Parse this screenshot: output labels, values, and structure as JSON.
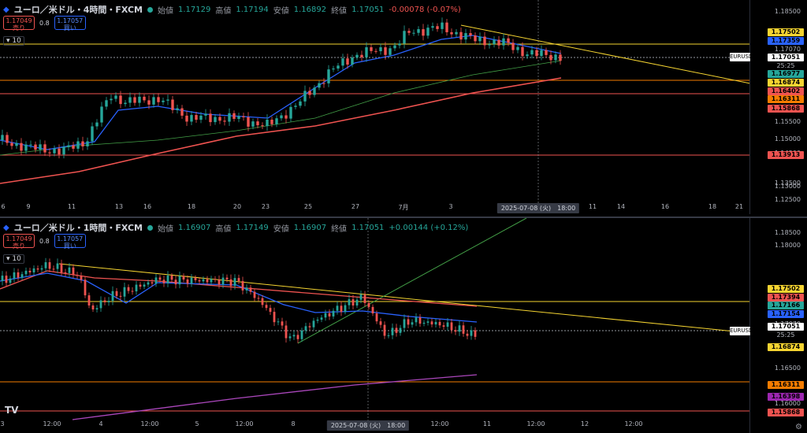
{
  "top": {
    "title": "ユーロ／米ドル・4時間・FXCM",
    "ohlc": [
      {
        "label": "始値",
        "value": "1.17129"
      },
      {
        "label": "高値",
        "value": "1.17194"
      },
      {
        "label": "安値",
        "value": "1.16892"
      },
      {
        "label": "終値",
        "value": "1.17051"
      }
    ],
    "change": "-0.00078 (-0.07%)",
    "sell_price": "1.17049",
    "sell_label": "売り",
    "spread": "0.8",
    "buy_price": "1.17057",
    "buy_label": "買い",
    "lots": "10",
    "price_ticks": [
      "1.18500",
      "1.17070",
      "1.15500",
      "1.15000",
      "1.14500",
      "1.13500",
      "1.13000",
      "1.12500"
    ],
    "tags": [
      {
        "text": "1.17502",
        "color": "#f5d431"
      },
      {
        "text": "1.17359",
        "color": "#2962ff"
      },
      {
        "text": "1.17051",
        "color": "#ffffff"
      },
      {
        "text": "25:25",
        "color": "transparent"
      },
      {
        "text": "1.16977",
        "color": "#26a69a"
      },
      {
        "text": "1.16874",
        "color": "#f5d431"
      },
      {
        "text": "1.16402",
        "color": "#ef5350"
      },
      {
        "text": "1.16311",
        "color": "#f57c00"
      },
      {
        "text": "1.15868",
        "color": "#ef5350"
      },
      {
        "text": "1.13913",
        "color": "#ef5350"
      }
    ],
    "symbol": "EURUSD",
    "x_ticks": [
      "6",
      "9",
      "11",
      "13",
      "16",
      "18",
      "20",
      "23",
      "25",
      "27",
      "7月",
      "3",
      "5",
      "11",
      "14",
      "16",
      "18",
      "21"
    ],
    "crosshair_time": "2025-07-08 (火)　18:00"
  },
  "bottom": {
    "title": "ユーロ／米ドル・1時間・FXCM",
    "ohlc": [
      {
        "label": "始値",
        "value": "1.16907"
      },
      {
        "label": "高値",
        "value": "1.17149"
      },
      {
        "label": "安値",
        "value": "1.16907"
      },
      {
        "label": "終値",
        "value": "1.17051"
      }
    ],
    "change": "+0.00144 (+0.12%)",
    "sell_price": "1.17049",
    "sell_label": "売り",
    "spread": "0.8",
    "buy_price": "1.17057",
    "buy_label": "買い",
    "lots": "10",
    "price_ticks": [
      "1.18500",
      "1.18000",
      "1.17070",
      "1.16500",
      "1.16000"
    ],
    "tags": [
      {
        "text": "1.17502",
        "color": "#f5d431"
      },
      {
        "text": "1.17394",
        "color": "#ef5350"
      },
      {
        "text": "1.17166",
        "color": "#26a69a"
      },
      {
        "text": "1.17154",
        "color": "#2962ff"
      },
      {
        "text": "1.17051",
        "color": "#ffffff"
      },
      {
        "text": "25:25",
        "color": "transparent"
      },
      {
        "text": "1.16874",
        "color": "#f5d431"
      },
      {
        "text": "1.16398",
        "color": "#9c27b0"
      },
      {
        "text": "1.16311",
        "color": "#f57c00"
      },
      {
        "text": "1.15868",
        "color": "#ef5350"
      }
    ],
    "symbol": "EURUSD",
    "x_ticks": [
      "3",
      "12:00",
      "4",
      "12:00",
      "5",
      "12:00",
      "8",
      "10",
      "12:00",
      "11",
      "12:00",
      "12",
      "12:00"
    ],
    "crosshair_time": "2025-07-08 (火)　18:00"
  },
  "logo": "TV",
  "gear_icon": "gear-icon"
}
